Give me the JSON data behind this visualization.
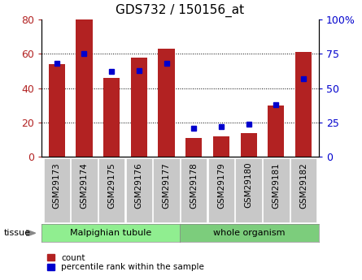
{
  "title": "GDS732 / 150156_at",
  "categories": [
    "GSM29173",
    "GSM29174",
    "GSM29175",
    "GSM29176",
    "GSM29177",
    "GSM29178",
    "GSM29179",
    "GSM29180",
    "GSM29181",
    "GSM29182"
  ],
  "red_values": [
    54,
    80,
    46,
    58,
    63,
    11,
    12,
    14,
    30,
    61
  ],
  "blue_percentiles": [
    68,
    75,
    62,
    63,
    68,
    21,
    22,
    24,
    38,
    57
  ],
  "left_ylim": [
    0,
    80
  ],
  "right_ylim": [
    0,
    100
  ],
  "left_yticks": [
    0,
    20,
    40,
    60,
    80
  ],
  "right_yticks": [
    0,
    25,
    50,
    75,
    100
  ],
  "right_yticklabels": [
    "0",
    "25",
    "50",
    "75",
    "100%"
  ],
  "grid_lines": [
    20,
    40,
    60
  ],
  "bar_color": "#b22222",
  "marker_color": "#0000cd",
  "tissue_groups": [
    {
      "label": "Malpighian tubule",
      "start": 0,
      "end": 4,
      "color": "#90ee90"
    },
    {
      "label": "whole organism",
      "start": 5,
      "end": 9,
      "color": "#7ccd7c"
    }
  ],
  "tissue_label": "tissue",
  "legend_items": [
    {
      "label": "count",
      "color": "#b22222"
    },
    {
      "label": "percentile rank within the sample",
      "color": "#0000cd"
    }
  ],
  "bg_color": "#ffffff",
  "tick_bg_color": "#c8c8c8",
  "bar_width": 0.6,
  "title_fontsize": 11,
  "tick_fontsize": 7.5
}
